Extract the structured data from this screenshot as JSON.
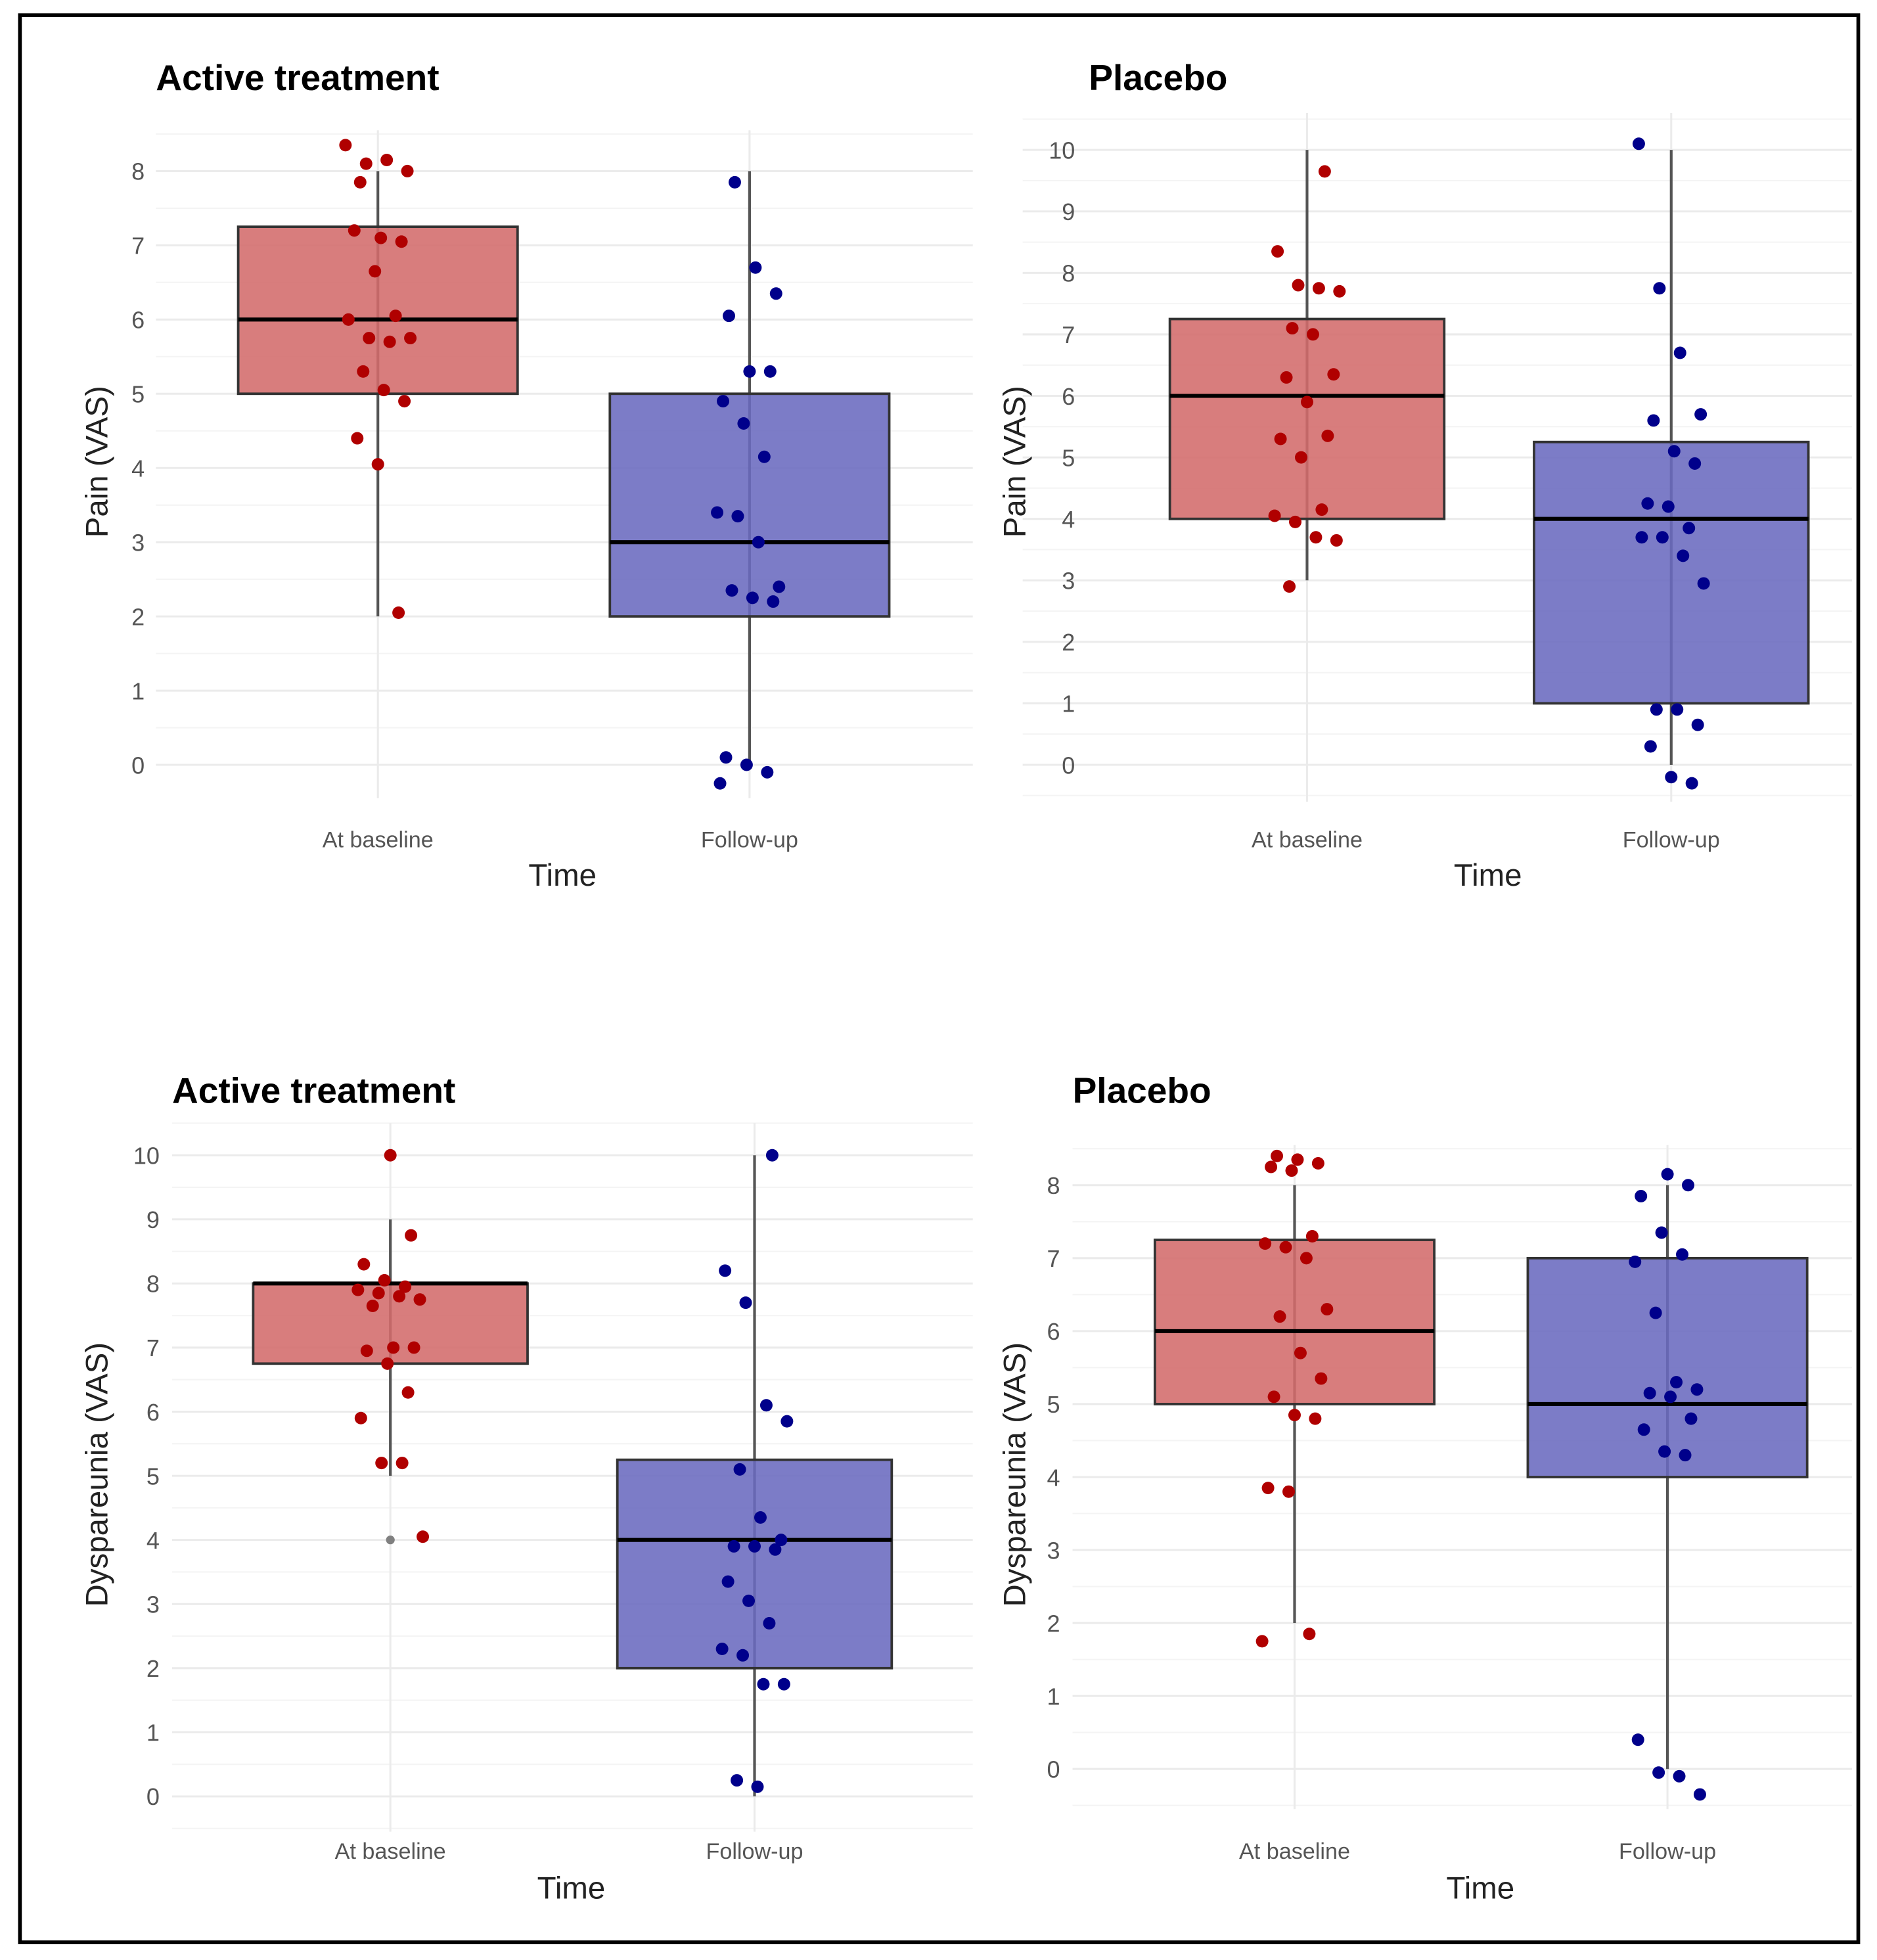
{
  "colors": {
    "baseline_fill": "#d36b6b",
    "baseline_point": "#b00000",
    "followup_fill": "#6a6abf",
    "followup_point": "#00008b",
    "outlier": "#808080",
    "frame": "#000000"
  },
  "chart_data": [
    {
      "type": "box",
      "title": "Active treatment",
      "xlabel": "Time",
      "ylabel": "Pain (VAS)",
      "ylim": [
        -0.45,
        8.55
      ],
      "yticks": [
        0,
        1,
        2,
        3,
        4,
        5,
        6,
        7,
        8
      ],
      "grid": true,
      "categories": [
        "At baseline",
        "Follow-up"
      ],
      "boxes": [
        {
          "q1": 5,
          "median": 6,
          "q3": 7.25,
          "whisker_low": 2,
          "whisker_high": 8,
          "outliers": []
        },
        {
          "q1": 2,
          "median": 3,
          "q3": 5,
          "whisker_low": 0,
          "whisker_high": 8,
          "outliers": []
        }
      ],
      "points": [
        [
          8.35,
          8.1,
          8.15,
          8.0,
          7.85,
          7.1,
          7.05,
          7.2,
          6.65,
          6.05,
          6.0,
          5.75,
          5.7,
          5.75,
          5.3,
          5.05,
          4.9,
          4.4,
          4.05,
          2.05
        ],
        [
          7.85,
          6.7,
          6.35,
          6.05,
          5.3,
          5.3,
          4.9,
          4.6,
          4.15,
          3.4,
          3.35,
          3.0,
          2.4,
          2.35,
          2.25,
          2.2,
          0.1,
          0.0,
          -0.1,
          -0.25
        ]
      ]
    },
    {
      "type": "box",
      "title": "Placebo",
      "xlabel": "Time",
      "ylabel": "Pain (VAS)",
      "ylim": [
        -0.6,
        10.6
      ],
      "yticks": [
        0,
        1,
        2,
        3,
        4,
        5,
        6,
        7,
        8,
        9,
        10
      ],
      "grid": true,
      "categories": [
        "At baseline",
        "Follow-up"
      ],
      "boxes": [
        {
          "q1": 4,
          "median": 6,
          "q3": 7.25,
          "whisker_low": 3,
          "whisker_high": 10,
          "outliers": []
        },
        {
          "q1": 1,
          "median": 4,
          "q3": 5.25,
          "whisker_low": 0,
          "whisker_high": 10,
          "outliers": []
        }
      ],
      "points": [
        [
          9.65,
          8.35,
          7.8,
          7.75,
          7.7,
          7.1,
          7.0,
          6.35,
          6.3,
          5.9,
          5.35,
          5.3,
          5.0,
          4.15,
          4.05,
          3.95,
          3.7,
          3.65,
          2.9
        ],
        [
          10.1,
          7.75,
          6.7,
          5.7,
          5.6,
          5.1,
          4.9,
          4.25,
          4.2,
          3.85,
          3.7,
          3.7,
          3.4,
          2.95,
          0.9,
          0.9,
          0.65,
          0.3,
          -0.2,
          -0.3
        ]
      ]
    },
    {
      "type": "box",
      "title": "Active treatment",
      "xlabel": "Time",
      "ylabel": "Dyspareunia (VAS)",
      "ylim": [
        -0.55,
        10.5
      ],
      "yticks": [
        0,
        1,
        2,
        3,
        4,
        5,
        6,
        7,
        8,
        9,
        10
      ],
      "grid": true,
      "categories": [
        "At baseline",
        "Follow-up"
      ],
      "boxes": [
        {
          "q1": 6.75,
          "median": 8,
          "q3": 8,
          "whisker_low": 5,
          "whisker_high": 9,
          "outliers": [
            4
          ]
        },
        {
          "q1": 2,
          "median": 4,
          "q3": 5.25,
          "whisker_low": 0,
          "whisker_high": 10,
          "outliers": []
        }
      ],
      "points": [
        [
          10.0,
          8.75,
          8.3,
          8.05,
          7.95,
          7.9,
          7.85,
          7.8,
          7.75,
          7.65,
          7.0,
          7.0,
          6.95,
          6.75,
          6.3,
          5.9,
          5.2,
          5.2,
          4.05
        ],
        [
          10.0,
          8.2,
          7.7,
          6.1,
          5.85,
          5.1,
          4.35,
          4.0,
          3.9,
          3.9,
          3.85,
          3.35,
          3.05,
          2.7,
          2.3,
          2.2,
          1.75,
          1.75,
          0.25,
          0.15
        ]
      ]
    },
    {
      "type": "box",
      "title": "Placebo",
      "xlabel": "Time",
      "ylabel": "Dyspareunia (VAS)",
      "ylim": [
        -0.55,
        8.55
      ],
      "yticks": [
        0,
        1,
        2,
        3,
        4,
        5,
        6,
        7,
        8
      ],
      "grid": true,
      "categories": [
        "At baseline",
        "Follow-up"
      ],
      "boxes": [
        {
          "q1": 5,
          "median": 6,
          "q3": 7.25,
          "whisker_low": 2,
          "whisker_high": 8,
          "outliers": []
        },
        {
          "q1": 4,
          "median": 5,
          "q3": 7,
          "whisker_low": 0,
          "whisker_high": 8,
          "outliers": []
        }
      ],
      "points": [
        [
          8.4,
          8.35,
          8.3,
          8.25,
          8.2,
          7.3,
          7.2,
          7.15,
          7.0,
          6.3,
          6.2,
          5.7,
          5.35,
          5.1,
          4.85,
          4.8,
          3.85,
          3.8,
          1.85,
          1.75
        ],
        [
          8.15,
          8.0,
          7.85,
          7.35,
          7.05,
          6.95,
          6.25,
          5.3,
          5.2,
          5.15,
          5.1,
          4.8,
          4.65,
          4.35,
          4.3,
          0.4,
          -0.05,
          -0.1,
          -0.35
        ]
      ]
    }
  ]
}
